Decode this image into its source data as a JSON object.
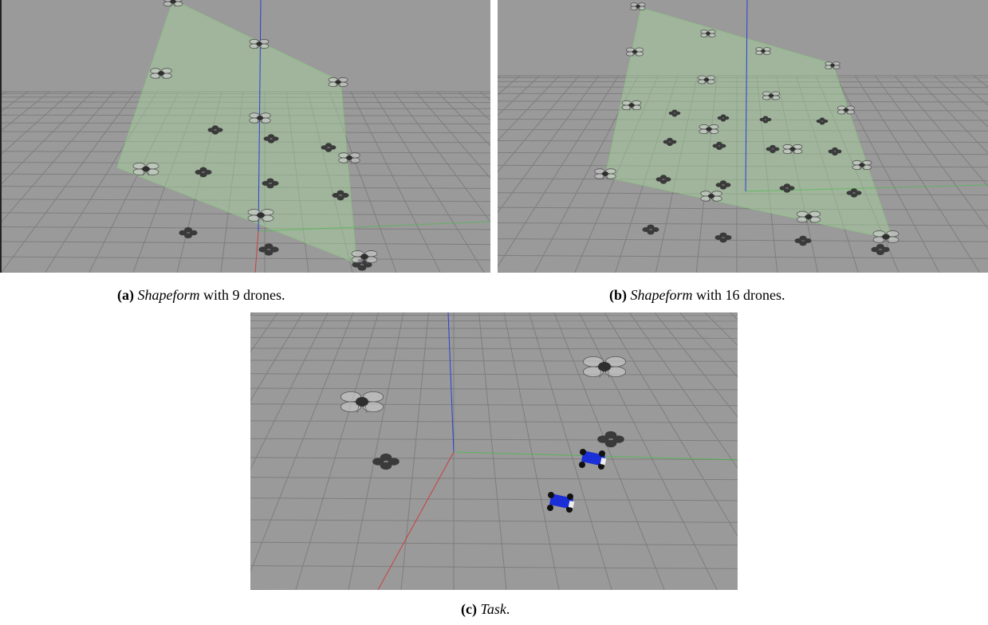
{
  "captions": {
    "a": {
      "label": "(a)",
      "emph": "Shapeform",
      "rest": " with 9 drones."
    },
    "b": {
      "label": "(b)",
      "emph": "Shapeform",
      "rest": " with 16 drones."
    },
    "c": {
      "label": "(c)",
      "emph": "Task",
      "rest": "."
    }
  },
  "colors": {
    "ground": "#9a9a9a",
    "grid": "#7e7e7e",
    "formation_plane": "#a8d8a0",
    "z_axis": "#2a3fd8",
    "x_axis": "#c84040",
    "y_axis": "#40c040",
    "drone": "#2f2f2f",
    "shadow": "#3a3a3a",
    "rover": "#1a2fd6"
  },
  "icons": [
    "drone-icon",
    "drone-shadow-icon",
    "rover-icon"
  ]
}
